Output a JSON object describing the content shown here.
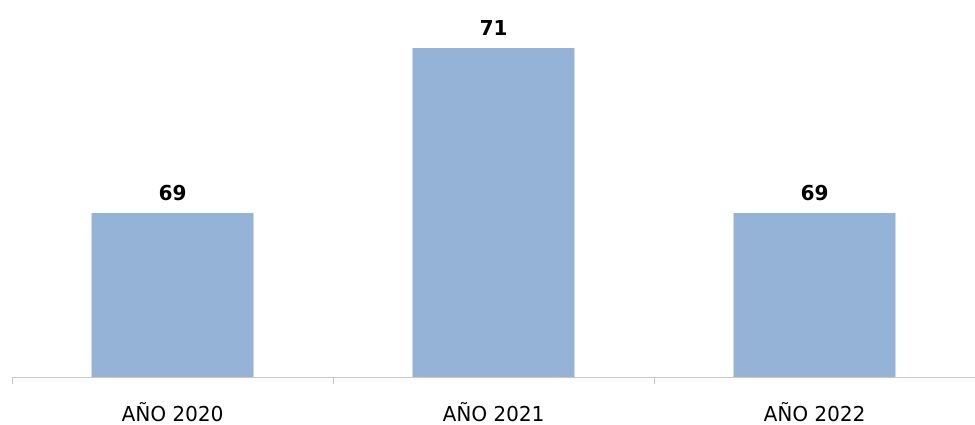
{
  "chart_data": {
    "type": "bar",
    "categories": [
      "AÑO 2020",
      "AÑO 2021",
      "AÑO 2022"
    ],
    "values": [
      69,
      71,
      69
    ],
    "title": "",
    "xlabel": "",
    "ylabel": "",
    "grid": false,
    "legend": "none",
    "bar_color": "#95B3D7",
    "axis_color": "#C8C8C8"
  }
}
